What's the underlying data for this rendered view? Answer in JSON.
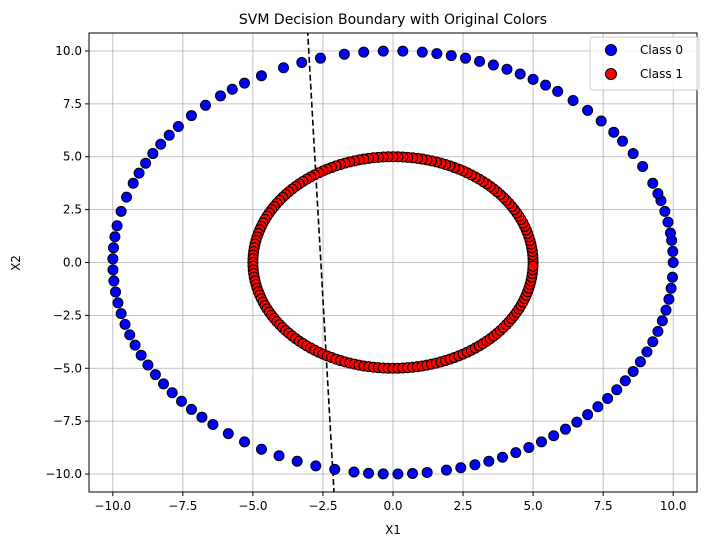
{
  "chart_data": {
    "type": "scatter",
    "title": "SVM Decision Boundary with Original Colors",
    "xlabel": "X1",
    "ylabel": "X2",
    "xlim": [
      -10.85,
      10.85
    ],
    "ylim": [
      -10.85,
      10.85
    ],
    "xticks": [
      -10.0,
      -7.5,
      -5.0,
      -2.5,
      0.0,
      2.5,
      5.0,
      7.5,
      10.0
    ],
    "yticks": [
      -10.0,
      -7.5,
      -5.0,
      -2.5,
      0.0,
      2.5,
      5.0,
      7.5,
      10.0
    ],
    "xtick_labels": [
      "−10.0",
      "−7.5",
      "−5.0",
      "−2.5",
      "0.0",
      "2.5",
      "5.0",
      "7.5",
      "10.0"
    ],
    "ytick_labels": [
      "−10.0",
      "−7.5",
      "−5.0",
      "−2.5",
      "0.0",
      "2.5",
      "5.0",
      "7.5",
      "10.0"
    ],
    "grid": true,
    "legend_position": "top-right",
    "series": [
      {
        "name": "Class 0",
        "color": "#0000ff",
        "edge_color": "#000000",
        "circle_radius": 10,
        "angles_deg": [
          0,
          3,
          6,
          8,
          11,
          14,
          17,
          19,
          22,
          27,
          31,
          35,
          38,
          42,
          46,
          50,
          54,
          57,
          60,
          63,
          66,
          69,
          72,
          75,
          78,
          81,
          84,
          88,
          92,
          96,
          100,
          105,
          109,
          113,
          118,
          122,
          125,
          128,
          132,
          136,
          140,
          143,
          146,
          149,
          152,
          155,
          158,
          162,
          166,
          170,
          173,
          176,
          179,
          182,
          185,
          188,
          191,
          194,
          197,
          200,
          203,
          206,
          209,
          212,
          215,
          218,
          221,
          224,
          227,
          230,
          234,
          238,
          242,
          246,
          250,
          254,
          258,
          262,
          265,
          268,
          271,
          274,
          277,
          281,
          284,
          287,
          290,
          293,
          296,
          299,
          302,
          305,
          308,
          311,
          314,
          317,
          320,
          323,
          326,
          329,
          332,
          335,
          338,
          341,
          344,
          347,
          350,
          353,
          356
        ]
      },
      {
        "name": "Class 1",
        "color": "#ff0000",
        "edge_color": "#000000",
        "circle_radius": 5,
        "angles_deg": [
          0,
          2,
          4,
          6,
          8,
          10,
          12,
          14,
          16,
          18,
          20,
          22,
          24,
          26,
          28,
          30,
          32,
          34,
          36,
          38,
          40,
          42,
          44,
          46,
          48,
          50,
          52,
          54,
          56,
          58,
          60,
          62,
          64,
          66,
          68,
          70,
          72,
          74,
          76,
          78,
          80,
          82,
          84,
          86,
          88,
          90,
          92,
          94,
          96,
          98,
          100,
          102,
          104,
          106,
          108,
          110,
          112,
          114,
          116,
          118,
          120,
          122,
          124,
          126,
          128,
          130,
          132,
          134,
          136,
          138,
          140,
          142,
          144,
          146,
          148,
          150,
          152,
          154,
          156,
          158,
          160,
          162,
          164,
          166,
          168,
          170,
          172,
          174,
          176,
          178,
          180,
          182,
          184,
          186,
          188,
          190,
          192,
          194,
          196,
          198,
          200,
          202,
          204,
          206,
          208,
          210,
          212,
          214,
          216,
          218,
          220,
          222,
          224,
          226,
          228,
          230,
          232,
          234,
          236,
          238,
          240,
          242,
          244,
          246,
          248,
          250,
          252,
          254,
          256,
          258,
          260,
          262,
          264,
          266,
          268,
          270,
          272,
          274,
          276,
          278,
          280,
          282,
          284,
          286,
          288,
          290,
          292,
          294,
          296,
          298,
          300,
          302,
          304,
          306,
          308,
          310,
          312,
          314,
          316,
          318,
          320,
          322,
          324,
          326,
          328,
          330,
          332,
          334,
          336,
          338,
          340,
          342,
          344,
          346,
          348,
          350,
          352,
          354,
          356,
          358
        ]
      }
    ],
    "decision_boundary": {
      "style": "dashed",
      "color": "#000000",
      "points": [
        [
          -3.05,
          11.0
        ],
        [
          -2.1,
          -11.0
        ]
      ]
    }
  }
}
